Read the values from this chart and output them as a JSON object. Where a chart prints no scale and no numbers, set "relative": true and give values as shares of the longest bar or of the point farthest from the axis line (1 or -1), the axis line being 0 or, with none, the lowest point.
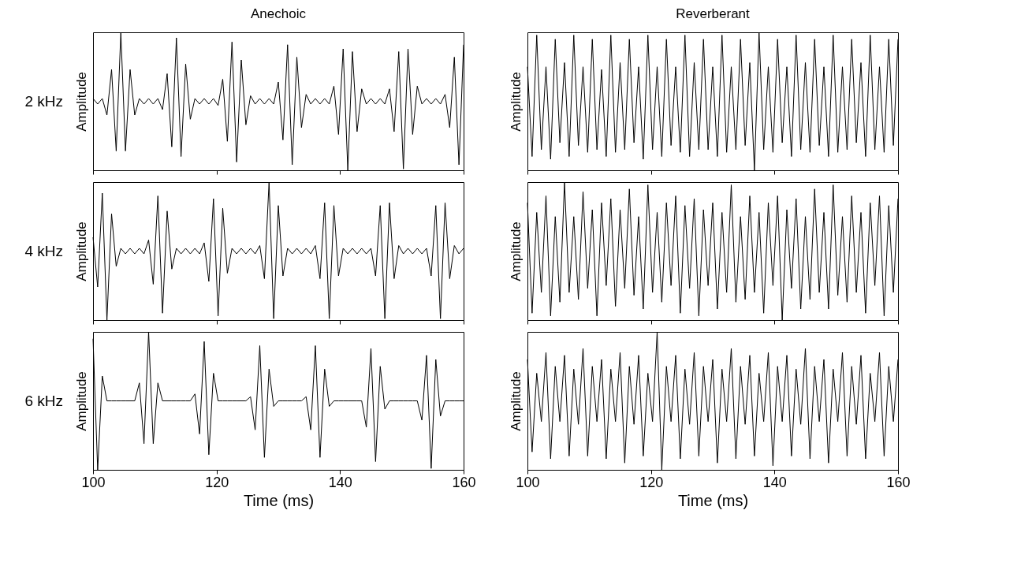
{
  "chart_data": [
    {
      "type": "line",
      "title": "Anechoic",
      "annotations": [
        "2 kHz"
      ],
      "ylabel": "Amplitude",
      "relative": true,
      "xlim": [
        100,
        160
      ],
      "xticks": [
        100,
        120,
        140,
        160
      ],
      "tick_labels": false,
      "x": [
        100,
        100.75,
        101.5,
        102.25,
        103,
        103.75,
        104.5,
        105.25,
        106,
        106.75,
        107.5,
        108.25,
        109,
        109.75,
        110.5,
        111.25,
        112,
        112.75,
        113.5,
        114.25,
        115,
        115.75,
        116.5,
        117.25,
        118,
        118.75,
        119.5,
        120.25,
        121,
        121.75,
        122.5,
        123.25,
        124,
        124.75,
        125.5,
        126.25,
        127,
        127.75,
        128.5,
        129.25,
        130,
        130.75,
        131.5,
        132.25,
        133,
        133.75,
        134.5,
        135.25,
        136,
        136.75,
        137.5,
        138.25,
        139,
        139.75,
        140.5,
        141.25,
        142,
        142.75,
        143.5,
        144.25,
        145,
        145.75,
        146.5,
        147.25,
        148,
        148.75,
        149.5,
        150.25,
        151,
        151.75,
        152.5,
        153.25,
        154,
        154.75,
        155.5,
        156.25,
        157,
        157.75,
        158.5,
        159.25,
        160
      ],
      "series": [
        {
          "color": "#000000",
          "values": [
            0.52,
            0.48,
            0.52,
            0.4,
            0.73,
            0.14,
            1.0,
            0.14,
            0.73,
            0.4,
            0.52,
            0.48,
            0.52,
            0.48,
            0.52,
            0.44,
            0.7,
            0.17,
            0.96,
            0.1,
            0.77,
            0.37,
            0.52,
            0.48,
            0.52,
            0.48,
            0.52,
            0.47,
            0.66,
            0.21,
            0.93,
            0.06,
            0.8,
            0.33,
            0.54,
            0.48,
            0.52,
            0.48,
            0.52,
            0.48,
            0.64,
            0.22,
            0.91,
            0.04,
            0.82,
            0.31,
            0.55,
            0.48,
            0.52,
            0.48,
            0.52,
            0.48,
            0.61,
            0.26,
            0.88,
            0.0,
            0.86,
            0.28,
            0.59,
            0.48,
            0.52,
            0.48,
            0.52,
            0.48,
            0.59,
            0.28,
            0.86,
            0.01,
            0.88,
            0.26,
            0.61,
            0.48,
            0.52,
            0.48,
            0.52,
            0.48,
            0.55,
            0.31,
            0.82,
            0.04,
            0.91
          ]
        }
      ]
    },
    {
      "type": "line",
      "title": "Reverberant",
      "ylabel": "Amplitude",
      "relative": true,
      "xlim": [
        100,
        160
      ],
      "xticks": [
        100,
        120,
        140,
        160
      ],
      "tick_labels": false,
      "x": [
        100,
        100.75,
        101.5,
        102.25,
        103,
        103.75,
        104.5,
        105.25,
        106,
        106.75,
        107.5,
        108.25,
        109,
        109.75,
        110.5,
        111.25,
        112,
        112.75,
        113.5,
        114.25,
        115,
        115.75,
        116.5,
        117.25,
        118,
        118.75,
        119.5,
        120.25,
        121,
        121.75,
        122.5,
        123.25,
        124,
        124.75,
        125.5,
        126.25,
        127,
        127.75,
        128.5,
        129.25,
        130,
        130.75,
        131.5,
        132.25,
        133,
        133.75,
        134.5,
        135.25,
        136,
        136.75,
        137.5,
        138.25,
        139,
        139.75,
        140.5,
        141.25,
        142,
        142.75,
        143.5,
        144.25,
        145,
        145.75,
        146.5,
        147.25,
        148,
        148.75,
        149.5,
        150.25,
        151,
        151.75,
        152.5,
        153.25,
        154,
        154.75,
        155.5,
        156.25,
        157,
        157.75,
        158.5,
        159.25,
        160
      ],
      "series": [
        {
          "color": "#000000",
          "values": [
            0.75,
            0.1,
            0.98,
            0.15,
            0.75,
            0.08,
            0.95,
            0.2,
            0.78,
            0.1,
            0.98,
            0.18,
            0.75,
            0.13,
            0.95,
            0.15,
            0.73,
            0.1,
            0.98,
            0.13,
            0.78,
            0.15,
            0.95,
            0.2,
            0.75,
            0.08,
            0.98,
            0.15,
            0.75,
            0.1,
            0.95,
            0.18,
            0.75,
            0.13,
            0.98,
            0.1,
            0.78,
            0.15,
            0.95,
            0.15,
            0.75,
            0.1,
            0.98,
            0.13,
            0.75,
            0.15,
            0.95,
            0.18,
            0.78,
            0.0,
            1.0,
            0.15,
            0.75,
            0.13,
            0.95,
            0.2,
            0.75,
            0.1,
            0.98,
            0.15,
            0.78,
            0.13,
            0.95,
            0.18,
            0.75,
            0.1,
            0.98,
            0.13,
            0.75,
            0.15,
            0.95,
            0.2,
            0.78,
            0.1,
            0.98,
            0.15,
            0.75,
            0.13,
            0.95,
            0.18,
            0.95
          ]
        }
      ]
    },
    {
      "type": "line",
      "annotations": [
        "4 kHz"
      ],
      "ylabel": "Amplitude",
      "relative": true,
      "xlim": [
        100,
        160
      ],
      "xticks": [
        100,
        120,
        140,
        160
      ],
      "tick_labels": false,
      "x": [
        100,
        100.75,
        101.5,
        102.25,
        103,
        103.75,
        104.5,
        105.25,
        106,
        106.75,
        107.5,
        108.25,
        109,
        109.75,
        110.5,
        111.25,
        112,
        112.75,
        113.5,
        114.25,
        115,
        115.75,
        116.5,
        117.25,
        118,
        118.75,
        119.5,
        120.25,
        121,
        121.75,
        122.5,
        123.25,
        124,
        124.75,
        125.5,
        126.25,
        127,
        127.75,
        128.5,
        129.25,
        130,
        130.75,
        131.5,
        132.25,
        133,
        133.75,
        134.5,
        135.25,
        136,
        136.75,
        137.5,
        138.25,
        139,
        139.75,
        140.5,
        141.25,
        142,
        142.75,
        143.5,
        144.25,
        145,
        145.75,
        146.5,
        147.25,
        148,
        148.75,
        149.5,
        150.25,
        151,
        151.75,
        152.5,
        153.25,
        154,
        154.75,
        155.5,
        156.25,
        157,
        157.75,
        158.5,
        159.25,
        160
      ],
      "series": [
        {
          "color": "#000000",
          "values": [
            0.6,
            0.24,
            0.92,
            0.0,
            0.77,
            0.39,
            0.52,
            0.48,
            0.52,
            0.48,
            0.52,
            0.48,
            0.58,
            0.26,
            0.9,
            0.05,
            0.79,
            0.37,
            0.52,
            0.48,
            0.52,
            0.48,
            0.52,
            0.48,
            0.56,
            0.28,
            0.88,
            0.03,
            0.81,
            0.34,
            0.52,
            0.48,
            0.52,
            0.48,
            0.52,
            0.48,
            0.54,
            0.3,
            1.0,
            0.01,
            0.83,
            0.32,
            0.52,
            0.48,
            0.52,
            0.48,
            0.52,
            0.48,
            0.54,
            0.3,
            0.85,
            0.01,
            0.83,
            0.32,
            0.52,
            0.48,
            0.52,
            0.48,
            0.52,
            0.48,
            0.52,
            0.32,
            0.83,
            0.01,
            0.85,
            0.3,
            0.54,
            0.48,
            0.52,
            0.48,
            0.52,
            0.48,
            0.52,
            0.32,
            0.83,
            0.01,
            0.85,
            0.3,
            0.54,
            0.48,
            0.52
          ]
        }
      ]
    },
    {
      "type": "line",
      "ylabel": "Amplitude",
      "relative": true,
      "xlim": [
        100,
        160
      ],
      "xticks": [
        100,
        120,
        140,
        160
      ],
      "tick_labels": false,
      "x": [
        100,
        100.75,
        101.5,
        102.25,
        103,
        103.75,
        104.5,
        105.25,
        106,
        106.75,
        107.5,
        108.25,
        109,
        109.75,
        110.5,
        111.25,
        112,
        112.75,
        113.5,
        114.25,
        115,
        115.75,
        116.5,
        117.25,
        118,
        118.75,
        119.5,
        120.25,
        121,
        121.75,
        122.5,
        123.25,
        124,
        124.75,
        125.5,
        126.25,
        127,
        127.75,
        128.5,
        129.25,
        130,
        130.75,
        131.5,
        132.25,
        133,
        133.75,
        134.5,
        135.25,
        136,
        136.75,
        137.5,
        138.25,
        139,
        139.75,
        140.5,
        141.25,
        142,
        142.75,
        143.5,
        144.25,
        145,
        145.75,
        146.5,
        147.25,
        148,
        148.75,
        149.5,
        150.25,
        151,
        151.75,
        152.5,
        153.25,
        154,
        154.75,
        155.5,
        156.25,
        157,
        157.75,
        158.5,
        159.25,
        160
      ],
      "series": [
        {
          "color": "#000000",
          "values": [
            0.85,
            0.05,
            0.78,
            0.2,
            0.9,
            0.03,
            0.75,
            0.13,
            1.0,
            0.2,
            0.75,
            0.15,
            0.93,
            0.23,
            0.8,
            0.03,
            0.85,
            0.25,
            0.88,
            0.1,
            0.8,
            0.23,
            0.95,
            0.18,
            0.75,
            0.08,
            0.98,
            0.2,
            0.78,
            0.13,
            0.85,
            0.25,
            0.9,
            0.05,
            0.83,
            0.23,
            0.88,
            0.03,
            0.8,
            0.25,
            0.85,
            0.08,
            0.78,
            0.2,
            0.98,
            0.13,
            0.75,
            0.15,
            0.9,
            0.2,
            0.78,
            0.05,
            0.85,
            0.25,
            0.9,
            0.0,
            0.8,
            0.23,
            0.88,
            0.08,
            0.75,
            0.15,
            0.95,
            0.2,
            0.78,
            0.08,
            0.98,
            0.18,
            0.75,
            0.13,
            0.9,
            0.2,
            0.78,
            0.05,
            0.85,
            0.25,
            0.9,
            0.03,
            0.83,
            0.2,
            0.88
          ]
        }
      ]
    },
    {
      "type": "line",
      "annotations": [
        "6 kHz"
      ],
      "ylabel": "Amplitude",
      "xlabel": "Time (ms)",
      "relative": true,
      "xlim": [
        100,
        160
      ],
      "xticks": [
        100,
        120,
        140,
        160
      ],
      "tick_labels": "x",
      "x": [
        100,
        100.75,
        101.5,
        102.25,
        103,
        103.75,
        104.5,
        105.25,
        106,
        106.75,
        107.5,
        108.25,
        109,
        109.75,
        110.5,
        111.25,
        112,
        112.75,
        113.5,
        114.25,
        115,
        115.75,
        116.5,
        117.25,
        118,
        118.75,
        119.5,
        120.25,
        121,
        121.75,
        122.5,
        123.25,
        124,
        124.75,
        125.5,
        126.25,
        127,
        127.75,
        128.5,
        129.25,
        130,
        130.75,
        131.5,
        132.25,
        133,
        133.75,
        134.5,
        135.25,
        136,
        136.75,
        137.5,
        138.25,
        139,
        139.75,
        140.5,
        141.25,
        142,
        142.75,
        143.5,
        144.25,
        145,
        145.75,
        146.5,
        147.25,
        148,
        148.75,
        149.5,
        150.25,
        151,
        151.75,
        152.5,
        153.25,
        154,
        154.75,
        155.5,
        156.25,
        157,
        157.75,
        158.5,
        159.25,
        160
      ],
      "series": [
        {
          "color": "#000000",
          "values": [
            0.95,
            0.0,
            0.68,
            0.5,
            0.5,
            0.5,
            0.5,
            0.5,
            0.5,
            0.5,
            0.63,
            0.19,
            1.0,
            0.19,
            0.63,
            0.5,
            0.5,
            0.5,
            0.5,
            0.5,
            0.5,
            0.5,
            0.55,
            0.26,
            0.93,
            0.11,
            0.7,
            0.5,
            0.5,
            0.5,
            0.5,
            0.5,
            0.5,
            0.5,
            0.53,
            0.29,
            0.9,
            0.09,
            0.73,
            0.46,
            0.5,
            0.5,
            0.5,
            0.5,
            0.5,
            0.5,
            0.53,
            0.29,
            0.9,
            0.09,
            0.73,
            0.46,
            0.5,
            0.5,
            0.5,
            0.5,
            0.5,
            0.5,
            0.5,
            0.31,
            0.88,
            0.06,
            0.75,
            0.44,
            0.5,
            0.5,
            0.5,
            0.5,
            0.5,
            0.5,
            0.5,
            0.36,
            0.83,
            0.01,
            0.8,
            0.39,
            0.5,
            0.5,
            0.5,
            0.5,
            0.5
          ]
        }
      ]
    },
    {
      "type": "line",
      "ylabel": "Amplitude",
      "xlabel": "Time (ms)",
      "relative": true,
      "xlim": [
        100,
        160
      ],
      "xticks": [
        100,
        120,
        140,
        160
      ],
      "tick_labels": "x",
      "x": [
        100,
        100.75,
        101.5,
        102.25,
        103,
        103.75,
        104.5,
        105.25,
        106,
        106.75,
        107.5,
        108.25,
        109,
        109.75,
        110.5,
        111.25,
        112,
        112.75,
        113.5,
        114.25,
        115,
        115.75,
        116.5,
        117.25,
        118,
        118.75,
        119.5,
        120.25,
        121,
        121.75,
        122.5,
        123.25,
        124,
        124.75,
        125.5,
        126.25,
        127,
        127.75,
        128.5,
        129.25,
        130,
        130.75,
        131.5,
        132.25,
        133,
        133.75,
        134.5,
        135.25,
        136,
        136.75,
        137.5,
        138.25,
        139,
        139.75,
        140.5,
        141.25,
        142,
        142.75,
        143.5,
        144.25,
        145,
        145.75,
        146.5,
        147.25,
        148,
        148.75,
        149.5,
        150.25,
        151,
        151.75,
        152.5,
        153.25,
        154,
        154.75,
        155.5,
        156.25,
        157,
        157.75,
        158.5,
        159.25,
        160
      ],
      "series": [
        {
          "color": "#000000",
          "values": [
            0.8,
            0.13,
            0.7,
            0.35,
            0.85,
            0.08,
            0.75,
            0.35,
            0.83,
            0.1,
            0.73,
            0.33,
            0.88,
            0.1,
            0.75,
            0.35,
            0.8,
            0.08,
            0.73,
            0.35,
            0.85,
            0.05,
            0.75,
            0.33,
            0.83,
            0.1,
            0.7,
            0.35,
            1.0,
            0.0,
            0.75,
            0.35,
            0.83,
            0.08,
            0.73,
            0.33,
            0.85,
            0.1,
            0.75,
            0.35,
            0.8,
            0.05,
            0.73,
            0.35,
            0.88,
            0.08,
            0.75,
            0.33,
            0.83,
            0.1,
            0.7,
            0.35,
            0.85,
            0.03,
            0.75,
            0.35,
            0.83,
            0.1,
            0.73,
            0.33,
            0.88,
            0.08,
            0.75,
            0.35,
            0.8,
            0.05,
            0.73,
            0.35,
            0.85,
            0.1,
            0.75,
            0.33,
            0.83,
            0.08,
            0.7,
            0.35,
            0.85,
            0.1,
            0.75,
            0.35,
            0.8
          ]
        }
      ]
    }
  ]
}
